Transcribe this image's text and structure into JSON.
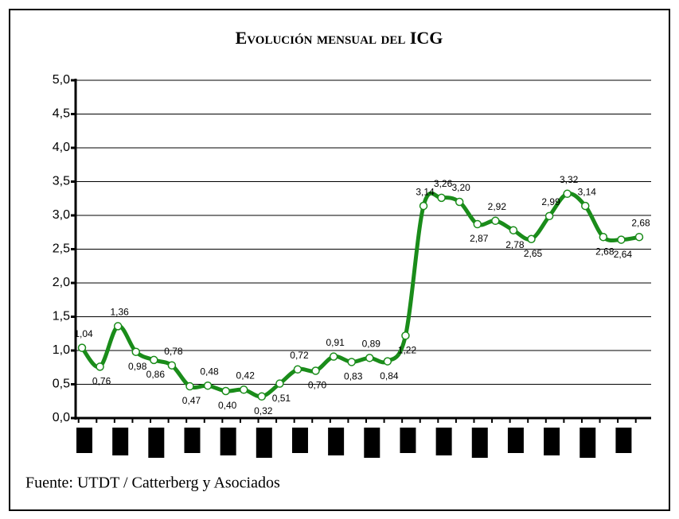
{
  "chart_data": {
    "type": "line",
    "title": "Evolución mensual del ICG",
    "source": "Fuente: UTDT / Catterberg y Asociados",
    "categories": [
      null,
      null,
      null,
      null,
      null,
      null,
      null,
      null,
      null,
      null,
      null,
      null,
      null,
      null,
      null,
      null,
      null,
      null,
      null,
      null,
      null,
      null,
      null,
      null,
      null,
      null,
      null,
      null,
      null,
      null,
      null,
      null
    ],
    "series": [
      {
        "color": "#1a8c1a",
        "values": [
          1.04,
          0.76,
          1.36,
          0.98,
          0.86,
          0.78,
          0.47,
          0.48,
          0.4,
          0.42,
          0.32,
          0.51,
          0.72,
          0.7,
          0.91,
          0.83,
          0.89,
          0.84,
          1.22,
          3.14,
          3.26,
          3.2,
          2.87,
          2.92,
          2.78,
          2.65,
          2.99,
          3.32,
          3.14,
          2.68,
          2.64,
          2.68
        ],
        "value_labels": [
          "1,04",
          "0,76",
          "1,36",
          "0,98",
          "0,86",
          "0,78",
          "0,47",
          "0,48",
          "0,40",
          "0,42",
          "0,32",
          "0,51",
          "0,72",
          "0,70",
          "0,91",
          "0,83",
          "0,89",
          "0,84",
          "1,22",
          "3,14",
          "3,26",
          "3,20",
          "2,87",
          "2,92",
          "2,78",
          "2,65",
          "2,99",
          "3,32",
          "3,14",
          "2,68",
          "2,64",
          "2,68"
        ]
      }
    ],
    "ylim": [
      0,
      5
    ],
    "yticks": [
      {
        "value": 0,
        "label": "0,0"
      },
      {
        "value": 0.5,
        "label": "0,5"
      },
      {
        "value": 1,
        "label": "1,0"
      },
      {
        "value": 1.5,
        "label": "1,5"
      },
      {
        "value": 2,
        "label": "2,0"
      },
      {
        "value": 2.5,
        "label": "2,5"
      },
      {
        "value": 3,
        "label": "3,0"
      },
      {
        "value": 3.5,
        "label": "3,5"
      },
      {
        "value": 4,
        "label": "4,0"
      },
      {
        "value": 4.5,
        "label": "4,5"
      },
      {
        "value": 5,
        "label": "5,0"
      }
    ],
    "grid": true
  }
}
